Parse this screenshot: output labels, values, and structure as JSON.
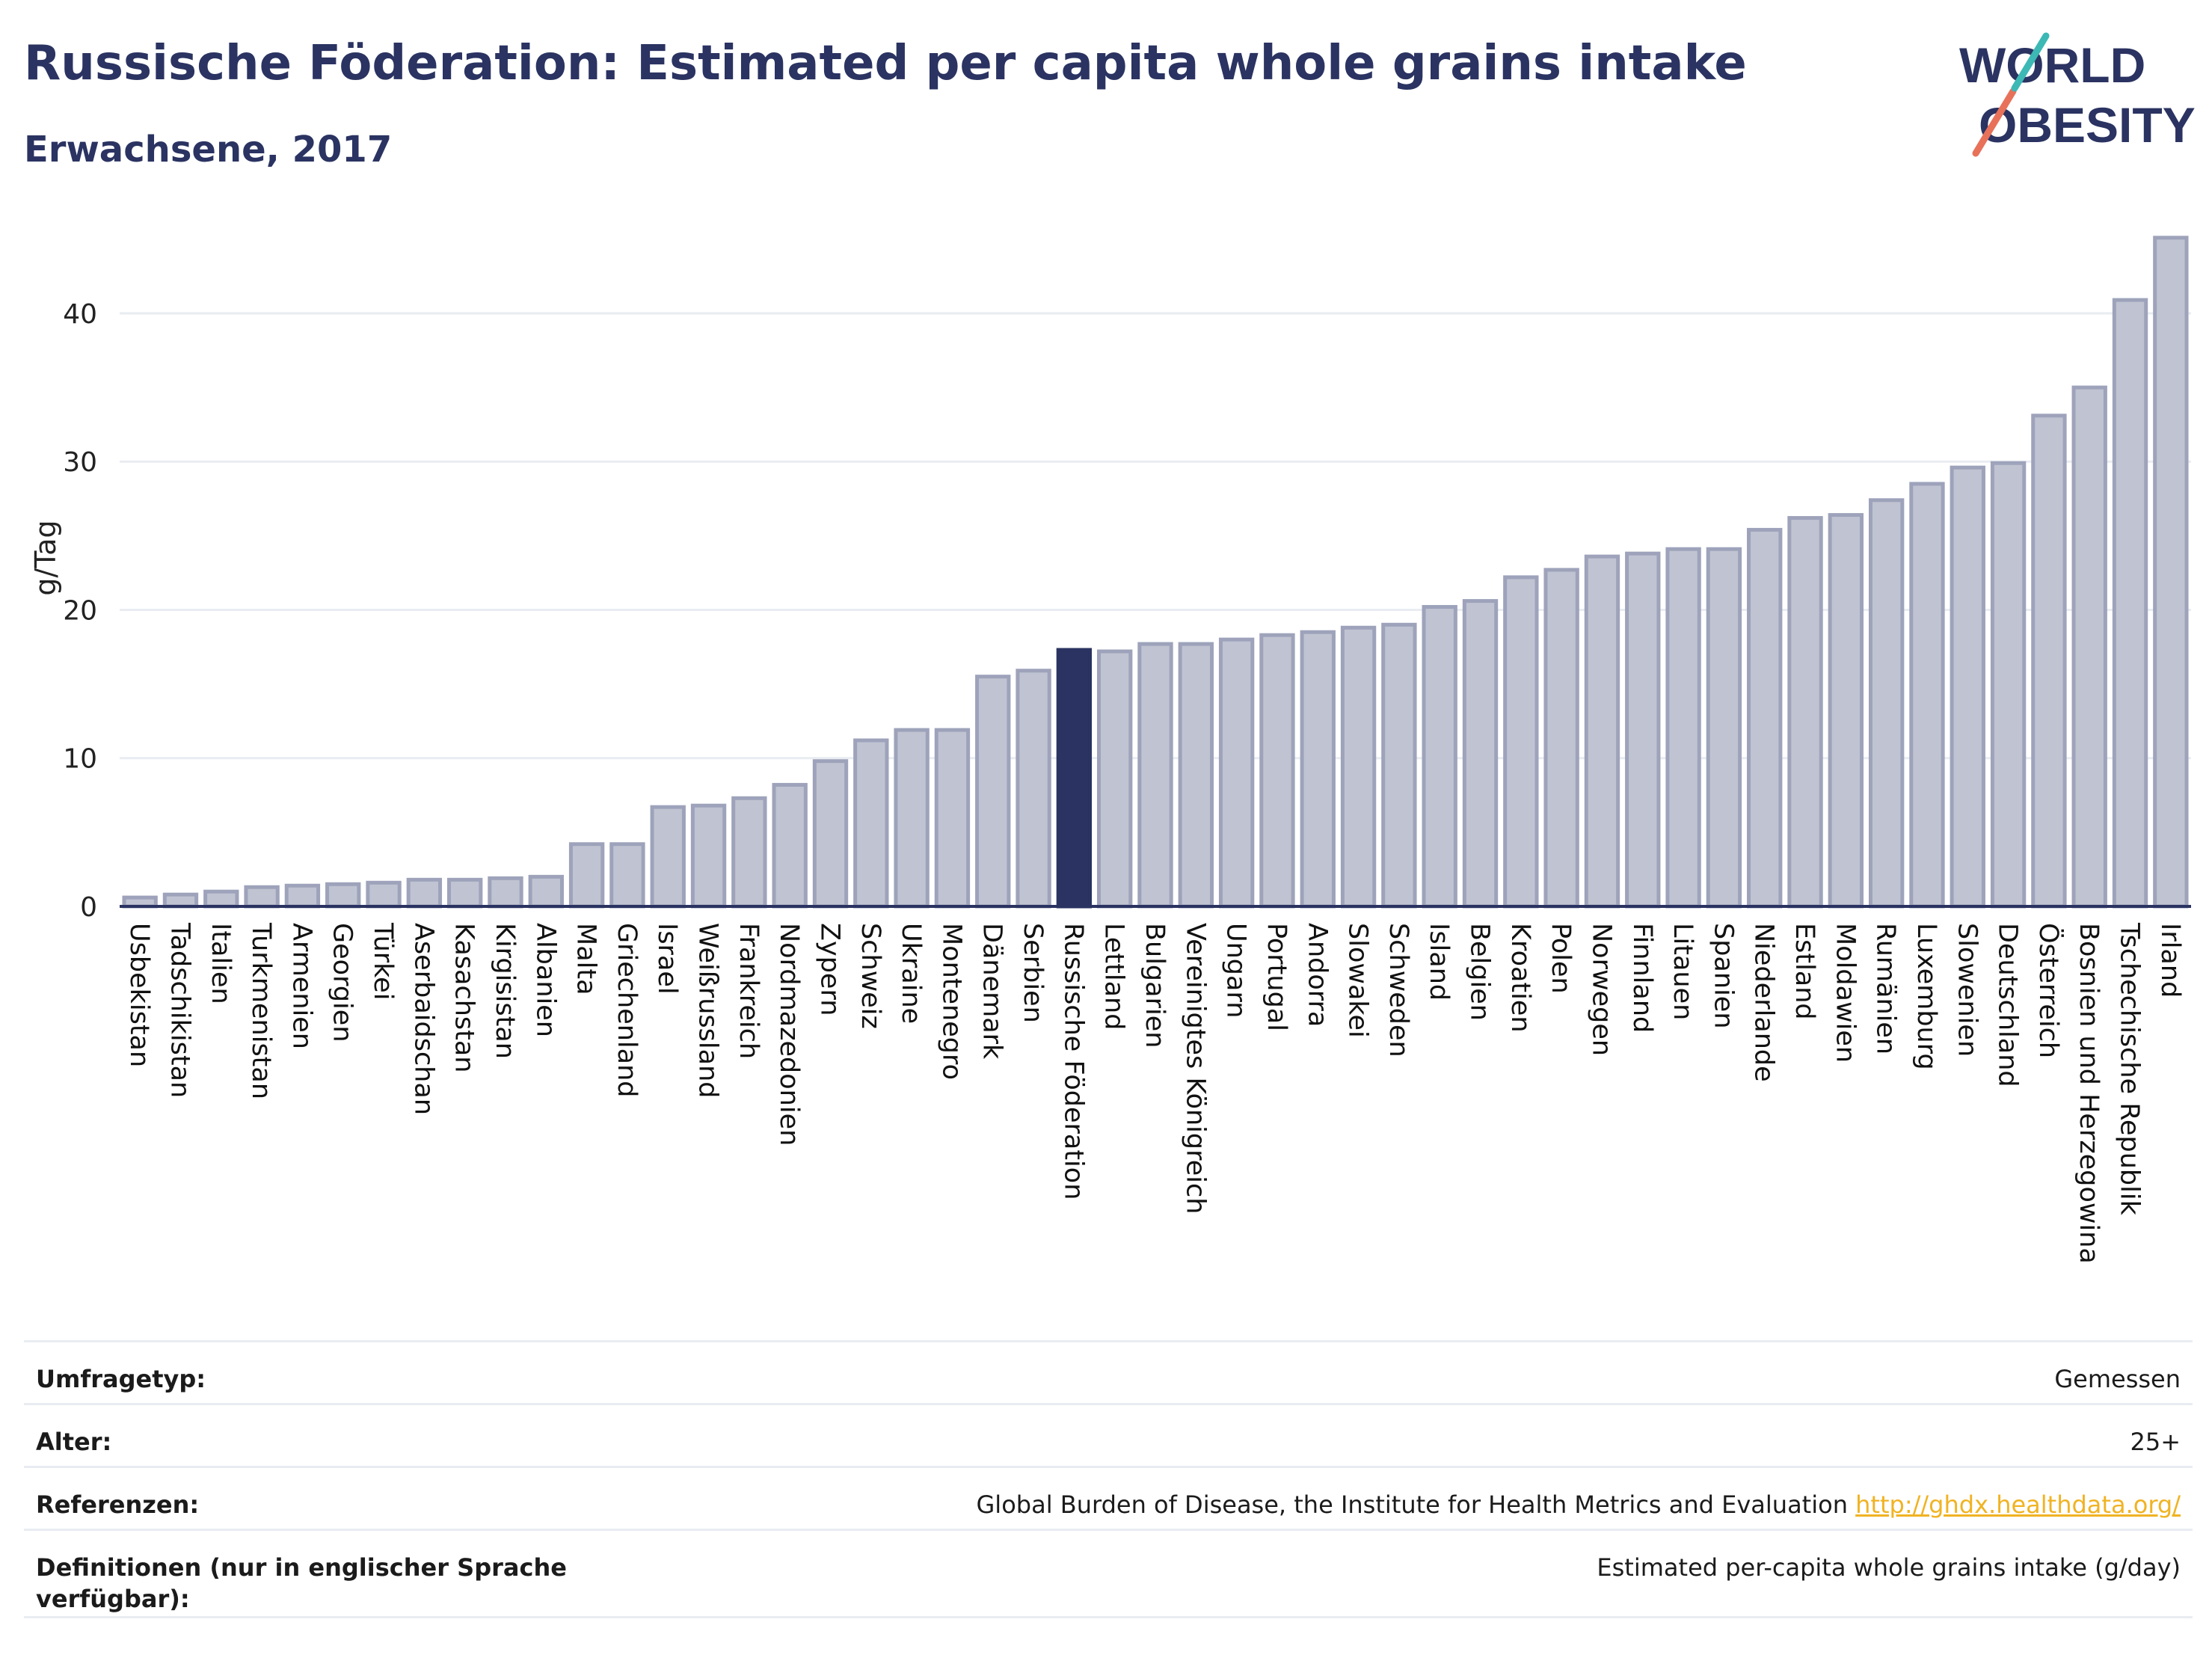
{
  "header": {
    "title": "Russische Föderation: Estimated per capita whole grains intake",
    "subtitle": "Erwachsene, 2017"
  },
  "logo": {
    "line1": "WORLD",
    "line2": "OBESITY"
  },
  "colors": {
    "bar": "#c0c3d1",
    "bar_stroke": "#9ea3bb",
    "highlight": "#2a3361",
    "grid": "#e9ecf1"
  },
  "chart_data": {
    "type": "bar",
    "ylabel": "g/Tag",
    "ylim": [
      0,
      46
    ],
    "yticks": [
      0,
      10,
      20,
      30,
      40
    ],
    "highlight": "Russische Föderation",
    "categories": [
      "Usbekistan",
      "Tadschikistan",
      "Italien",
      "Turkmenistan",
      "Armenien",
      "Georgien",
      "Türkei",
      "Aserbaidschan",
      "Kasachstan",
      "Kirgisistan",
      "Albanien",
      "Malta",
      "Griechenland",
      "Israel",
      "Weißrussland",
      "Frankreich",
      "Nordmazedonien",
      "Zypern",
      "Schweiz",
      "Ukraine",
      "Montenegro",
      "Dänemark",
      "Serbien",
      "Russische Föderation",
      "Lettland",
      "Bulgarien",
      "Vereinigtes Königreich",
      "Ungarn",
      "Portugal",
      "Andorra",
      "Slowakei",
      "Schweden",
      "Island",
      "Belgien",
      "Kroatien",
      "Polen",
      "Norwegen",
      "Finnland",
      "Litauen",
      "Spanien",
      "Niederlande",
      "Estland",
      "Moldawien",
      "Rumänien",
      "Luxemburg",
      "Slowenien",
      "Deutschland",
      "Österreich",
      "Bosnien und Herzegowina",
      "Tschechische Republik",
      "Irland"
    ],
    "values": [
      0.6,
      0.8,
      1.0,
      1.3,
      1.4,
      1.5,
      1.6,
      1.8,
      1.8,
      1.9,
      2.0,
      4.2,
      4.2,
      6.7,
      6.8,
      7.3,
      8.2,
      9.8,
      11.2,
      11.9,
      11.9,
      15.5,
      15.9,
      17.3,
      17.2,
      17.7,
      17.7,
      18.0,
      18.3,
      18.5,
      18.8,
      19.0,
      20.2,
      20.6,
      22.2,
      22.7,
      23.6,
      23.8,
      24.1,
      24.1,
      25.4,
      26.2,
      26.4,
      27.4,
      28.5,
      29.6,
      29.9,
      33.1,
      35.0,
      40.9,
      45.1
    ]
  },
  "meta": [
    {
      "label": "Umfragetyp:",
      "value": "Gemessen"
    },
    {
      "label": "Alter:",
      "value": "25+"
    },
    {
      "label": "Referenzen:",
      "value": "Global Burden of Disease, the Institute for Health Metrics and Evaluation",
      "link": "http://ghdx.healthdata.org/"
    },
    {
      "label": "Definitionen (nur in englischer Sprache verfügbar):",
      "value": "Estimated per-capita whole grains intake (g/day)"
    }
  ]
}
